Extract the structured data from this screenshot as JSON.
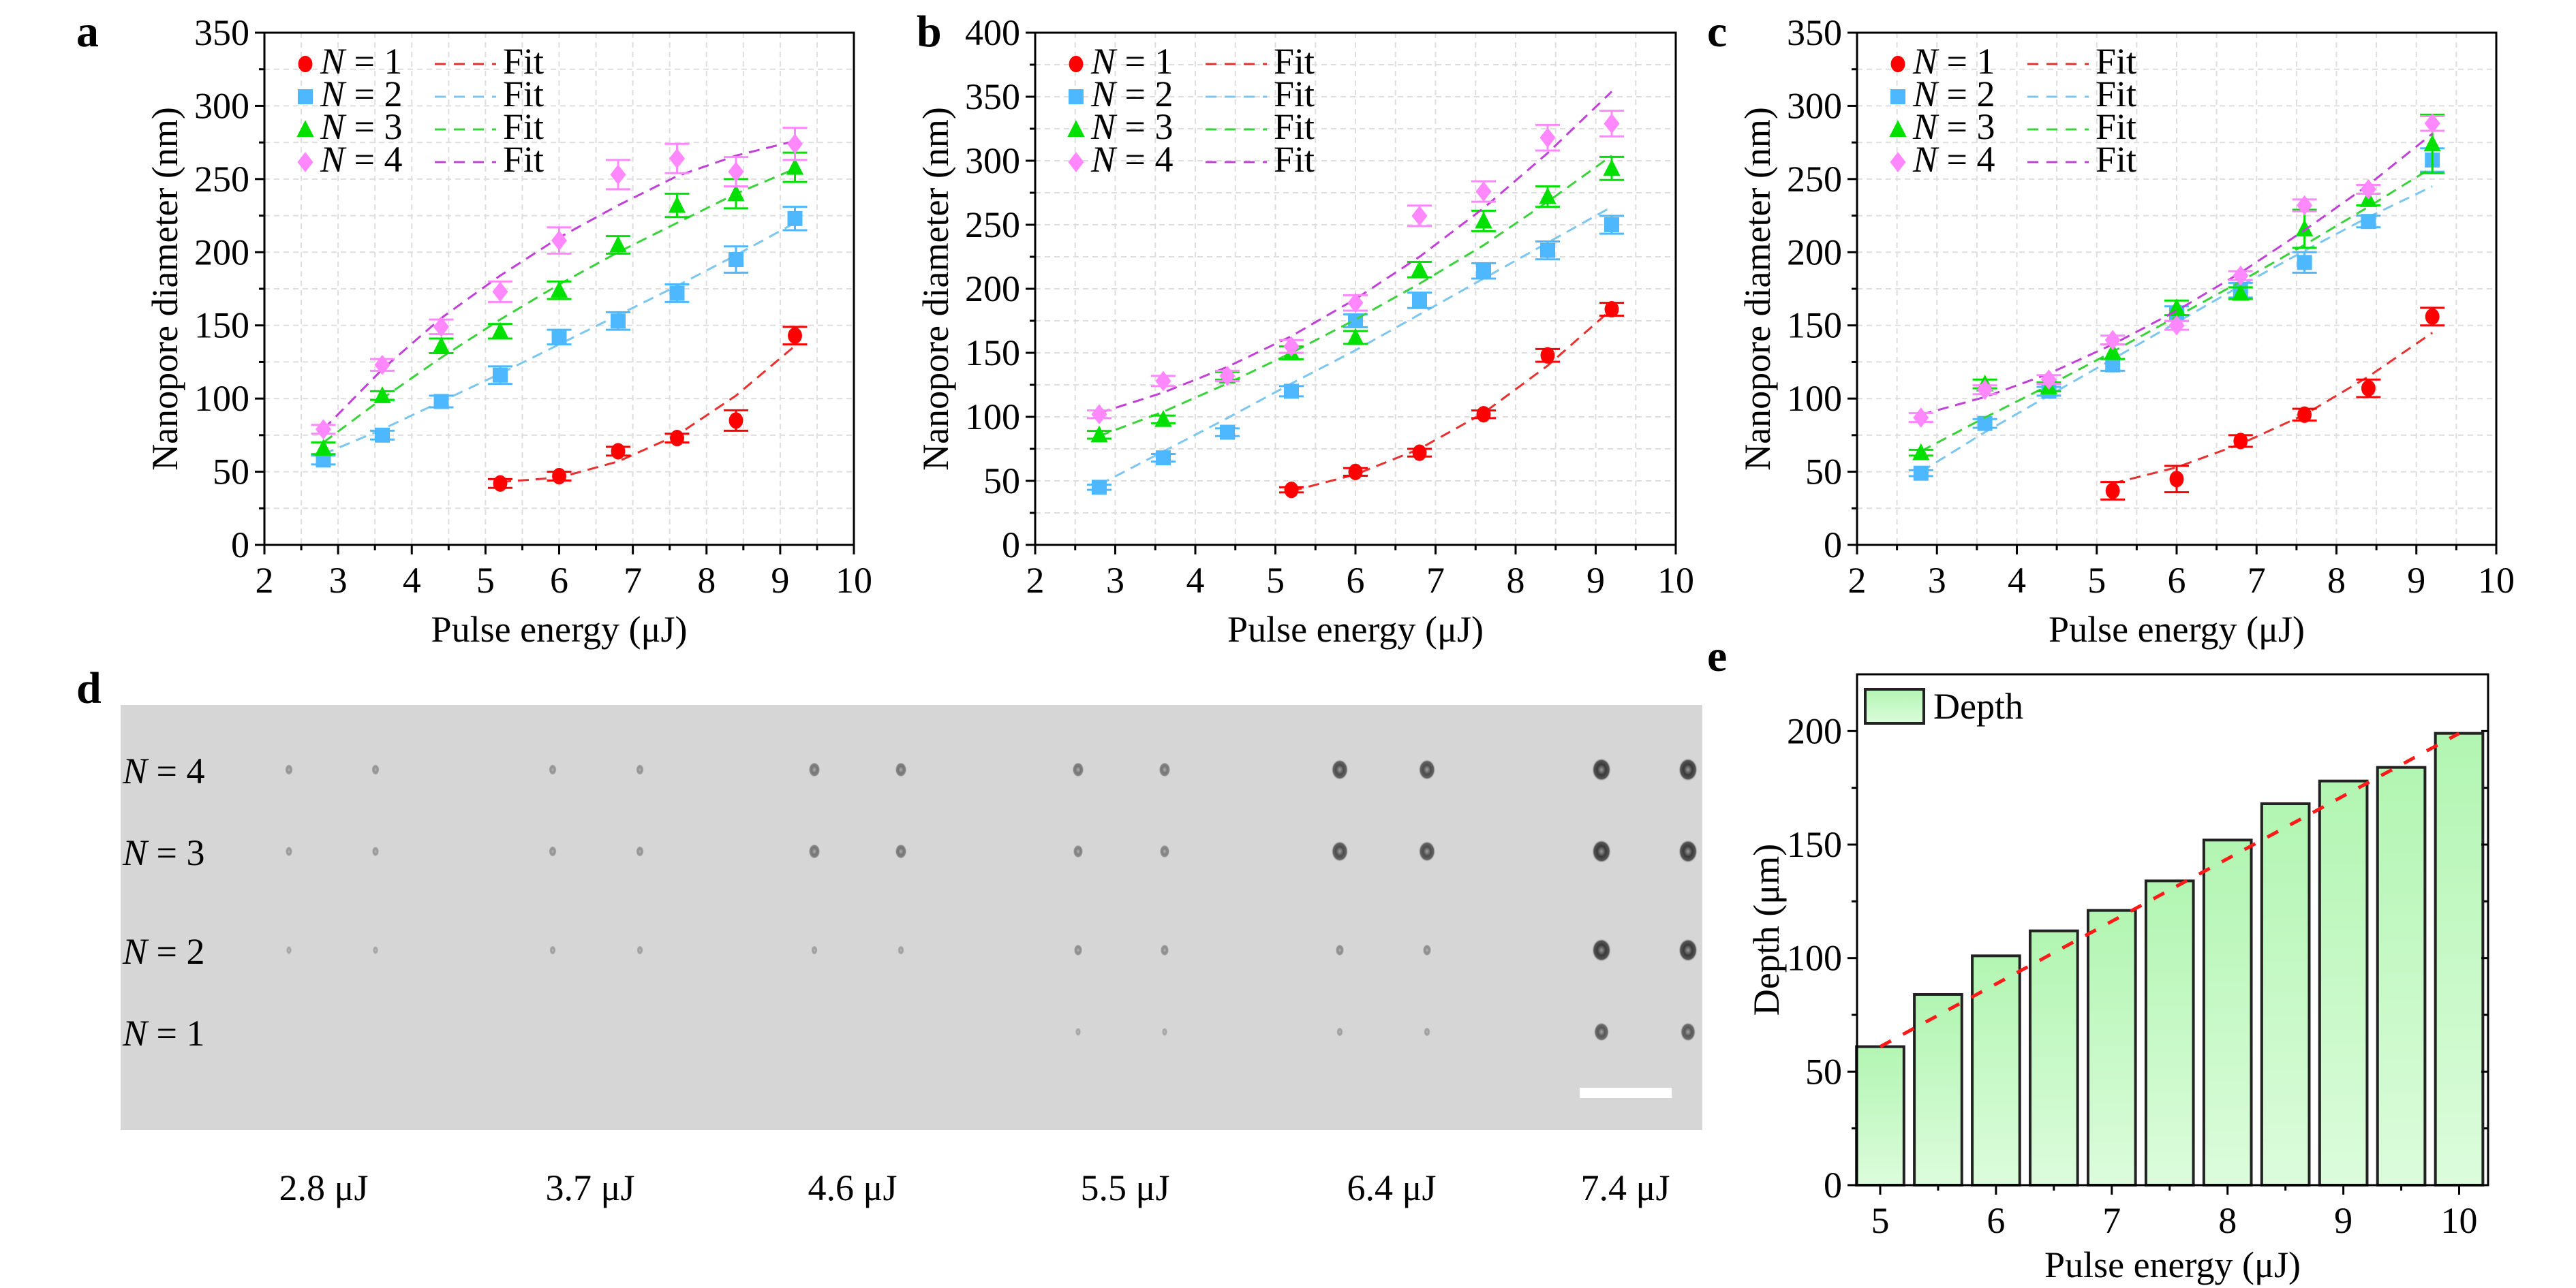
{
  "figure": {
    "panel_labels": [
      "a",
      "b",
      "c",
      "d",
      "e"
    ]
  },
  "chart_data": [
    {
      "panel": "a",
      "type": "scatter",
      "xlabel": "Pulse energy (μJ)",
      "ylabel": "Nanopore diameter (nm)",
      "xlim": [
        2,
        10
      ],
      "ylim": [
        0,
        350
      ],
      "xticks": [
        2,
        3,
        4,
        5,
        6,
        7,
        8,
        9,
        10
      ],
      "yticks": [
        0,
        50,
        100,
        150,
        200,
        250,
        300,
        350
      ],
      "grid": true,
      "legend_position": "top-left",
      "series": [
        {
          "name": "N = 1",
          "marker": "circle",
          "color": "#ff0000",
          "fit_color": "#e8302f",
          "x": [
            5.2,
            6.0,
            6.8,
            7.6,
            8.4,
            9.2
          ],
          "y": [
            42,
            47,
            64,
            73,
            85,
            143
          ],
          "err": [
            3,
            3,
            3,
            3,
            7,
            6
          ],
          "fit_x": [
            5.2,
            6.0,
            6.8,
            7.6,
            8.4,
            9.2
          ],
          "fit_y": [
            43,
            46,
            57,
            75,
            102,
            136
          ]
        },
        {
          "name": "N = 2",
          "marker": "square",
          "color": "#4db8ff",
          "fit_color": "#7cc6ef",
          "x": [
            2.8,
            3.6,
            4.4,
            5.2,
            6.0,
            6.8,
            7.6,
            8.4,
            9.2
          ],
          "y": [
            58,
            75,
            98,
            116,
            142,
            153,
            172,
            195,
            223
          ],
          "err": [
            3,
            3,
            4,
            6,
            5,
            6,
            6,
            9,
            8
          ],
          "fit_x": [
            2.8,
            3.6,
            4.4,
            5.2,
            6.0,
            6.8,
            7.6,
            8.4,
            9.2
          ],
          "fit_y": [
            62,
            79,
            98,
            117,
            137,
            157,
            177,
            198,
            220
          ]
        },
        {
          "name": "N = 3",
          "marker": "triangle",
          "color": "#00e000",
          "fit_color": "#3ad23a",
          "x": [
            2.8,
            3.6,
            4.4,
            5.2,
            6.0,
            6.8,
            7.6,
            8.4,
            9.2
          ],
          "y": [
            66,
            102,
            136,
            146,
            174,
            205,
            232,
            240,
            258
          ],
          "err": [
            4,
            3,
            5,
            5,
            6,
            6,
            8,
            10,
            10
          ],
          "fit_x": [
            2.8,
            3.6,
            4.4,
            5.2,
            6.0,
            6.8,
            7.6,
            8.4,
            9.2
          ],
          "fit_y": [
            70,
            100,
            128,
            154,
            178,
            200,
            220,
            240,
            257
          ]
        },
        {
          "name": "N = 4",
          "marker": "diamond",
          "color": "#ff88ff",
          "fit_color": "#c040d8",
          "x": [
            2.8,
            3.6,
            4.4,
            5.2,
            6.0,
            6.8,
            7.6,
            8.4,
            9.2
          ],
          "y": [
            79,
            123,
            149,
            173,
            208,
            253,
            264,
            255,
            274
          ],
          "err": [
            3,
            4,
            5,
            7,
            9,
            10,
            10,
            10,
            11
          ],
          "fit_x": [
            2.8,
            3.6,
            4.4,
            5.2,
            6.0,
            6.8,
            7.6,
            8.4,
            9.2
          ],
          "fit_y": [
            79,
            120,
            155,
            184,
            210,
            232,
            252,
            266,
            276
          ]
        }
      ],
      "legend_fit_label": "Fit"
    },
    {
      "panel": "b",
      "type": "scatter",
      "xlabel": "Pulse energy (μJ)",
      "ylabel": "Nanopore diameter (nm)",
      "xlim": [
        2,
        10
      ],
      "ylim": [
        0,
        400
      ],
      "xticks": [
        2,
        3,
        4,
        5,
        6,
        7,
        8,
        9,
        10
      ],
      "yticks": [
        0,
        50,
        100,
        150,
        200,
        250,
        300,
        350,
        400
      ],
      "grid": true,
      "legend_position": "top-left",
      "series": [
        {
          "name": "N = 1",
          "marker": "circle",
          "color": "#ff0000",
          "fit_color": "#e8302f",
          "x": [
            5.2,
            6.0,
            6.8,
            7.6,
            8.4,
            9.2
          ],
          "y": [
            43,
            57,
            72,
            102,
            148,
            184
          ],
          "err": [
            2,
            3,
            3,
            3,
            5,
            5
          ],
          "fit_x": [
            5.2,
            6.0,
            6.8,
            7.6,
            8.4,
            9.2
          ],
          "fit_y": [
            42,
            55,
            75,
            103,
            140,
            184
          ]
        },
        {
          "name": "N = 2",
          "marker": "square",
          "color": "#4db8ff",
          "fit_color": "#7cc6ef",
          "x": [
            2.8,
            3.6,
            4.4,
            5.2,
            6.0,
            6.8,
            7.6,
            8.4,
            9.2
          ],
          "y": [
            45,
            68,
            88,
            120,
            175,
            191,
            214,
            230,
            250
          ],
          "err": [
            2,
            3,
            3,
            4,
            5,
            6,
            6,
            7,
            7
          ],
          "fit_x": [
            2.8,
            3.6,
            4.4,
            5.2,
            6.0,
            6.8,
            7.6,
            8.4,
            9.2
          ],
          "fit_y": [
            47,
            73,
            99,
            126,
            152,
            180,
            208,
            236,
            264
          ]
        },
        {
          "name": "N = 3",
          "marker": "triangle",
          "color": "#00e000",
          "fit_color": "#3ad23a",
          "x": [
            2.8,
            3.6,
            4.4,
            5.2,
            6.0,
            6.8,
            7.6,
            8.4,
            9.2
          ],
          "y": [
            86,
            98,
            132,
            150,
            162,
            215,
            253,
            272,
            294
          ],
          "err": [
            3,
            3,
            3,
            5,
            5,
            6,
            8,
            8,
            9
          ],
          "fit_x": [
            2.8,
            3.6,
            4.4,
            5.2,
            6.0,
            6.8,
            7.6,
            8.4,
            9.2
          ],
          "fit_y": [
            85,
            104,
            126,
            150,
            176,
            204,
            234,
            268,
            304
          ]
        },
        {
          "name": "N = 4",
          "marker": "diamond",
          "color": "#ff88ff",
          "fit_color": "#c040d8",
          "x": [
            2.8,
            3.6,
            4.4,
            5.2,
            6.0,
            6.8,
            7.6,
            8.4,
            9.2
          ],
          "y": [
            102,
            128,
            132,
            155,
            189,
            257,
            276,
            318,
            329
          ],
          "err": [
            3,
            4,
            4,
            5,
            6,
            8,
            8,
            10,
            10
          ],
          "fit_x": [
            2.8,
            3.6,
            4.4,
            5.2,
            6.0,
            6.8,
            7.6,
            8.4,
            9.2
          ],
          "fit_y": [
            103,
            119,
            139,
            163,
            192,
            225,
            263,
            306,
            354
          ]
        }
      ],
      "legend_fit_label": "Fit"
    },
    {
      "panel": "c",
      "type": "scatter",
      "xlabel": "Pulse energy (μJ)",
      "ylabel": "Nanopore diameter (nm)",
      "xlim": [
        2,
        10
      ],
      "ylim": [
        0,
        350
      ],
      "xticks": [
        2,
        3,
        4,
        5,
        6,
        7,
        8,
        9,
        10
      ],
      "yticks": [
        0,
        50,
        100,
        150,
        200,
        250,
        300,
        350
      ],
      "grid": true,
      "legend_position": "top-left",
      "series": [
        {
          "name": "N = 1",
          "marker": "circle",
          "color": "#ff0000",
          "fit_color": "#e8302f",
          "x": [
            5.2,
            6.0,
            6.8,
            7.6,
            8.4,
            9.2
          ],
          "y": [
            37,
            45,
            71,
            89,
            107,
            156
          ],
          "err": [
            6,
            9,
            4,
            4,
            6,
            6
          ],
          "fit_x": [
            5.2,
            6.0,
            6.8,
            7.6,
            8.4,
            9.2
          ],
          "fit_y": [
            42,
            53,
            69,
            89,
            115,
            145
          ]
        },
        {
          "name": "N = 2",
          "marker": "square",
          "color": "#4db8ff",
          "fit_color": "#7cc6ef",
          "x": [
            2.8,
            3.6,
            4.4,
            5.2,
            6.0,
            6.8,
            7.6,
            8.4,
            9.2
          ],
          "y": [
            49,
            83,
            105,
            123,
            158,
            174,
            193,
            221,
            263
          ],
          "err": [
            2,
            3,
            3,
            4,
            5,
            5,
            7,
            4,
            8
          ],
          "fit_x": [
            2.8,
            3.6,
            4.4,
            5.2,
            6.0,
            6.8,
            7.6,
            8.4,
            9.2
          ],
          "fit_y": [
            50,
            77,
            102,
            127,
            152,
            177,
            201,
            224,
            245
          ]
        },
        {
          "name": "N = 3",
          "marker": "triangle",
          "color": "#00e000",
          "fit_color": "#3ad23a",
          "x": [
            2.8,
            3.6,
            4.4,
            5.2,
            6.0,
            6.8,
            7.6,
            8.4,
            9.2
          ],
          "y": [
            63,
            110,
            108,
            132,
            162,
            172,
            216,
            236,
            274
          ],
          "err": [
            2,
            3,
            3,
            5,
            5,
            4,
            13,
            4,
            20
          ],
          "fit_x": [
            2.8,
            3.6,
            4.4,
            5.2,
            6.0,
            6.8,
            7.6,
            8.4,
            9.2
          ],
          "fit_y": [
            64,
            87,
            109,
            132,
            156,
            180,
            205,
            231,
            258
          ]
        },
        {
          "name": "N = 4",
          "marker": "diamond",
          "color": "#ff88ff",
          "fit_color": "#c040d8",
          "x": [
            2.8,
            3.6,
            4.4,
            5.2,
            6.0,
            6.8,
            7.6,
            8.4,
            9.2
          ],
          "y": [
            87,
            106,
            113,
            140,
            150,
            184,
            232,
            243,
            288
          ],
          "err": [
            3,
            3,
            3,
            3,
            3,
            3,
            4,
            3,
            5
          ],
          "fit_x": [
            2.8,
            3.6,
            4.4,
            5.2,
            6.0,
            6.8,
            7.6,
            8.4,
            9.2
          ],
          "fit_y": [
            89,
            101,
            117,
            137,
            160,
            186,
            215,
            246,
            281
          ]
        }
      ],
      "legend_fit_label": "Fit"
    },
    {
      "panel": "e",
      "type": "bar",
      "xlabel": "Pulse energy (μJ)",
      "ylabel": "Depth (μm)",
      "xlim": [
        4.8,
        10.25
      ],
      "ylim": [
        0,
        225
      ],
      "xticks": [
        5,
        6,
        7,
        8,
        9,
        10
      ],
      "yticks": [
        0,
        50,
        100,
        150,
        200
      ],
      "grid": false,
      "legend_position": "top-left",
      "legend": "Depth",
      "x": [
        5.0,
        5.5,
        6.0,
        6.5,
        7.0,
        7.5,
        8.0,
        8.5,
        9.0,
        9.5,
        10.0
      ],
      "values": [
        61,
        84,
        101,
        112,
        121,
        134,
        152,
        168,
        178,
        184,
        199
      ],
      "fit": {
        "x": [
          5.0,
          10.0
        ],
        "y": [
          61,
          199
        ],
        "color": "#ff1a1a"
      }
    }
  ],
  "panel_d": {
    "row_labels": [
      "N = 4",
      "N = 3",
      "N = 2",
      "N = 1"
    ],
    "column_labels": [
      "2.8 μJ",
      "3.7 μJ",
      "4.6 μJ",
      "5.5 μJ",
      "6.4 μJ",
      "7.4 μJ"
    ],
    "scale_bar": "white bar",
    "pore_visibility": [
      [
        0.25,
        0.25,
        0.5,
        0.5,
        0.85,
        1.0
      ],
      [
        0.2,
        0.25,
        0.5,
        0.4,
        0.85,
        1.0
      ],
      [
        0.1,
        0.15,
        0.15,
        0.3,
        0.3,
        1.0
      ],
      [
        0.0,
        0.0,
        0.0,
        0.1,
        0.15,
        0.75
      ]
    ],
    "background_color": "#d6d6d6"
  }
}
